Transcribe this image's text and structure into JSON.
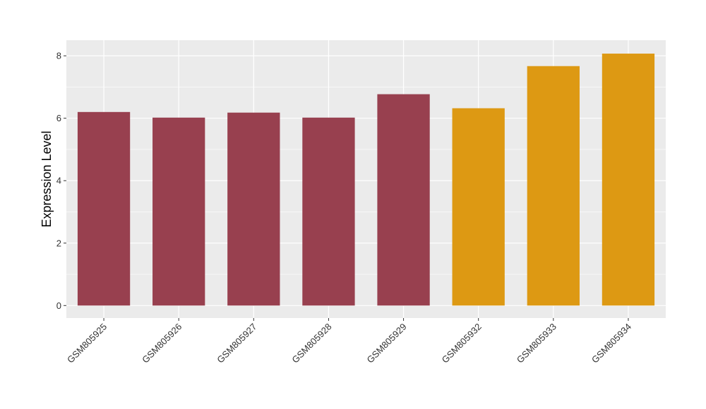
{
  "chart_data": {
    "type": "bar",
    "title": "",
    "xlabel": "",
    "ylabel": "Expression Level",
    "categories": [
      "GSM805925",
      "GSM805926",
      "GSM805927",
      "GSM805928",
      "GSM805929",
      "GSM805932",
      "GSM805933",
      "GSM805934"
    ],
    "values": [
      6.2,
      6.02,
      6.18,
      6.02,
      6.77,
      6.32,
      7.67,
      8.07
    ],
    "bar_colors": [
      "#98404F",
      "#98404F",
      "#98404F",
      "#98404F",
      "#98404F",
      "#DD9913",
      "#DD9913",
      "#DD9913"
    ],
    "ylim": [
      -0.4,
      8.5
    ],
    "yticks": [
      0,
      2,
      4,
      6,
      8
    ],
    "grid": true,
    "panel_background": "#EBEBEB",
    "grid_color": "#FFFFFF"
  }
}
